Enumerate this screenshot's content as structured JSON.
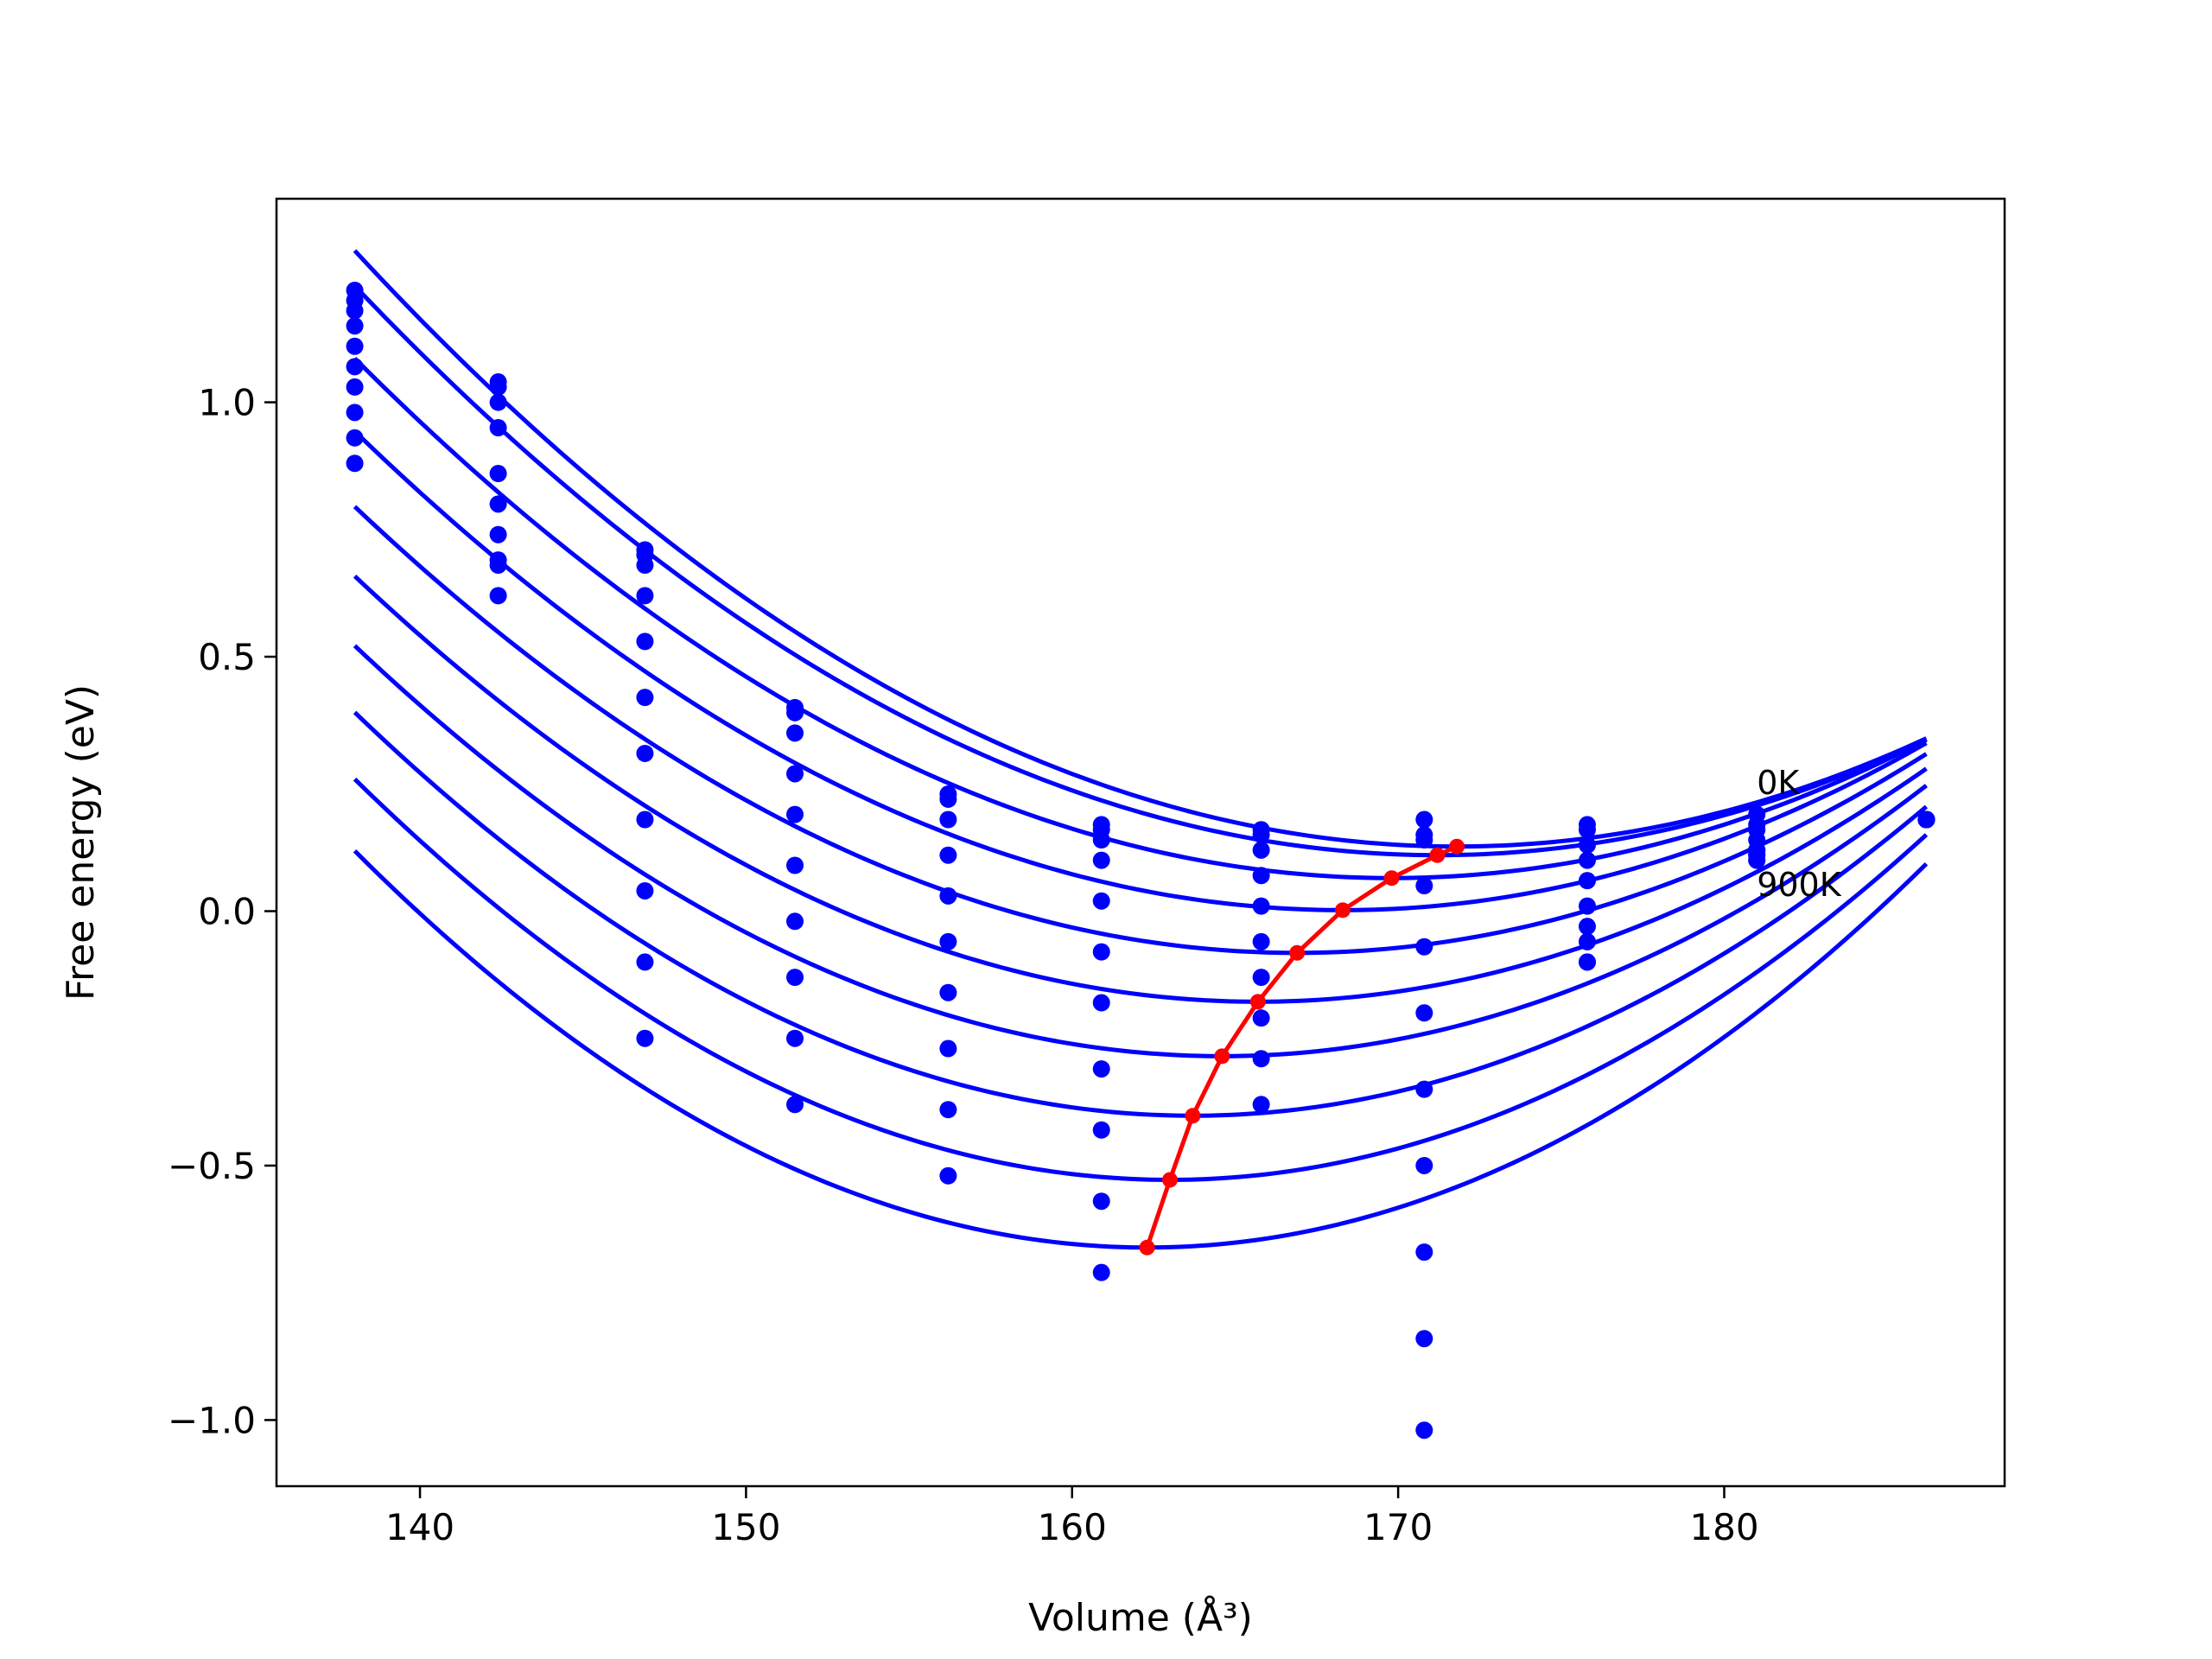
{
  "chart_data": {
    "type": "scatter",
    "xlabel": "Volume (Å³)",
    "ylabel": "Free energy (eV)",
    "xlim": [
      135.6,
      188.6
    ],
    "ylim": [
      -1.13,
      1.4
    ],
    "x_ticks": [
      140,
      150,
      160,
      170,
      180
    ],
    "x_tick_labels": [
      "140",
      "150",
      "160",
      "170",
      "180"
    ],
    "y_ticks": [
      -1.0,
      -0.5,
      0.0,
      0.5,
      1.0
    ],
    "y_tick_labels": [
      "−1.0",
      "−0.5",
      "0.0",
      "0.5",
      "1.0"
    ],
    "grid": false,
    "annotations": [
      {
        "text": "0K",
        "x": 181.0,
        "y": 0.23
      },
      {
        "text": "900K",
        "x": 181.0,
        "y": 0.03
      }
    ],
    "colors": {
      "curves": "#0000ff",
      "equilibrium": "#ff0000",
      "axes": "#000000"
    },
    "volumes": [
      138.0,
      142.4,
      146.9,
      151.5,
      156.2,
      160.9,
      165.8,
      170.8,
      175.8,
      181.0,
      186.2
    ],
    "curves": [
      {
        "fit": {
          "v0": 171.8,
          "e0": 0.127,
          "a": 0.001025
        },
        "points": [
          1.22,
          1.04,
          0.71,
          0.4,
          0.23,
          0.17,
          0.16,
          0.18,
          0.17,
          0.19,
          0.18
        ]
      },
      {
        "fit": {
          "v0": 171.2,
          "e0": 0.11,
          "a": 0.001015
        },
        "points": [
          1.2,
          1.03,
          0.7,
          0.39,
          0.22,
          0.16,
          0.15,
          0.15,
          0.16,
          0.17,
          0.18
        ]
      },
      {
        "fit": {
          "v0": 169.8,
          "e0": 0.065,
          "a": 0.00101
        },
        "points": [
          1.18,
          1.0,
          0.68,
          0.35,
          0.18,
          0.14,
          0.12,
          0.14,
          0.13,
          0.16,
          0.18
        ]
      },
      {
        "fit": {
          "v0": 168.3,
          "e0": 0.002,
          "a": 0.001025
        },
        "points": [
          1.15,
          0.95,
          0.62,
          0.27,
          0.11,
          0.1,
          0.07,
          0.05,
          0.1,
          0.14,
          0.18
        ]
      },
      {
        "fit": {
          "v0": 166.9,
          "e0": -0.082,
          "a": 0.00105
        },
        "points": [
          1.11,
          0.86,
          0.53,
          0.19,
          0.03,
          0.02,
          0.01,
          -0.07,
          0.06,
          0.12,
          0.18
        ]
      },
      {
        "fit": {
          "v0": 165.7,
          "e0": -0.178,
          "a": 0.00109
        },
        "points": [
          1.07,
          0.8,
          0.42,
          0.09,
          -0.06,
          -0.08,
          -0.06,
          -0.2,
          0.01,
          0.11,
          0.18
        ]
      },
      {
        "fit": {
          "v0": 164.6,
          "e0": -0.285,
          "a": 0.00114
        },
        "points": [
          1.03,
          0.74,
          0.31,
          -0.02,
          -0.16,
          -0.18,
          -0.13,
          -0.35,
          -0.03,
          0.1,
          0.18
        ]
      },
      {
        "fit": {
          "v0": 163.7,
          "e0": -0.402,
          "a": 0.0012
        },
        "points": [
          0.98,
          0.69,
          0.18,
          -0.13,
          -0.27,
          -0.31,
          -0.21,
          -0.5,
          -0.06,
          0.1,
          0.18
        ]
      },
      {
        "fit": {
          "v0": 163.0,
          "e0": -0.528,
          "a": 0.00126
        },
        "points": [
          0.93,
          0.68,
          0.04,
          -0.25,
          -0.39,
          -0.43,
          -0.29,
          -0.67,
          -0.1,
          0.11,
          0.18
        ]
      },
      {
        "fit": {
          "v0": 162.3,
          "e0": -0.661,
          "a": 0.00132
        },
        "points": [
          0.88,
          0.62,
          -0.1,
          -0.38,
          -0.52,
          -0.57,
          -0.38,
          -0.84,
          -0.1,
          0.12,
          0.18
        ]
      },
      {
        "fit": null,
        "points": [
          null,
          null,
          -0.25,
          null,
          null,
          -0.71,
          null,
          -1.02,
          null,
          null,
          0.18
        ]
      }
    ],
    "equilibrium_line": {
      "x": [
        162.3,
        163.0,
        163.7,
        164.6,
        165.7,
        166.9,
        168.3,
        169.8,
        171.2,
        171.8
      ],
      "y": [
        -0.661,
        -0.528,
        -0.402,
        -0.285,
        -0.178,
        -0.082,
        0.002,
        0.065,
        0.11,
        0.127
      ]
    }
  }
}
